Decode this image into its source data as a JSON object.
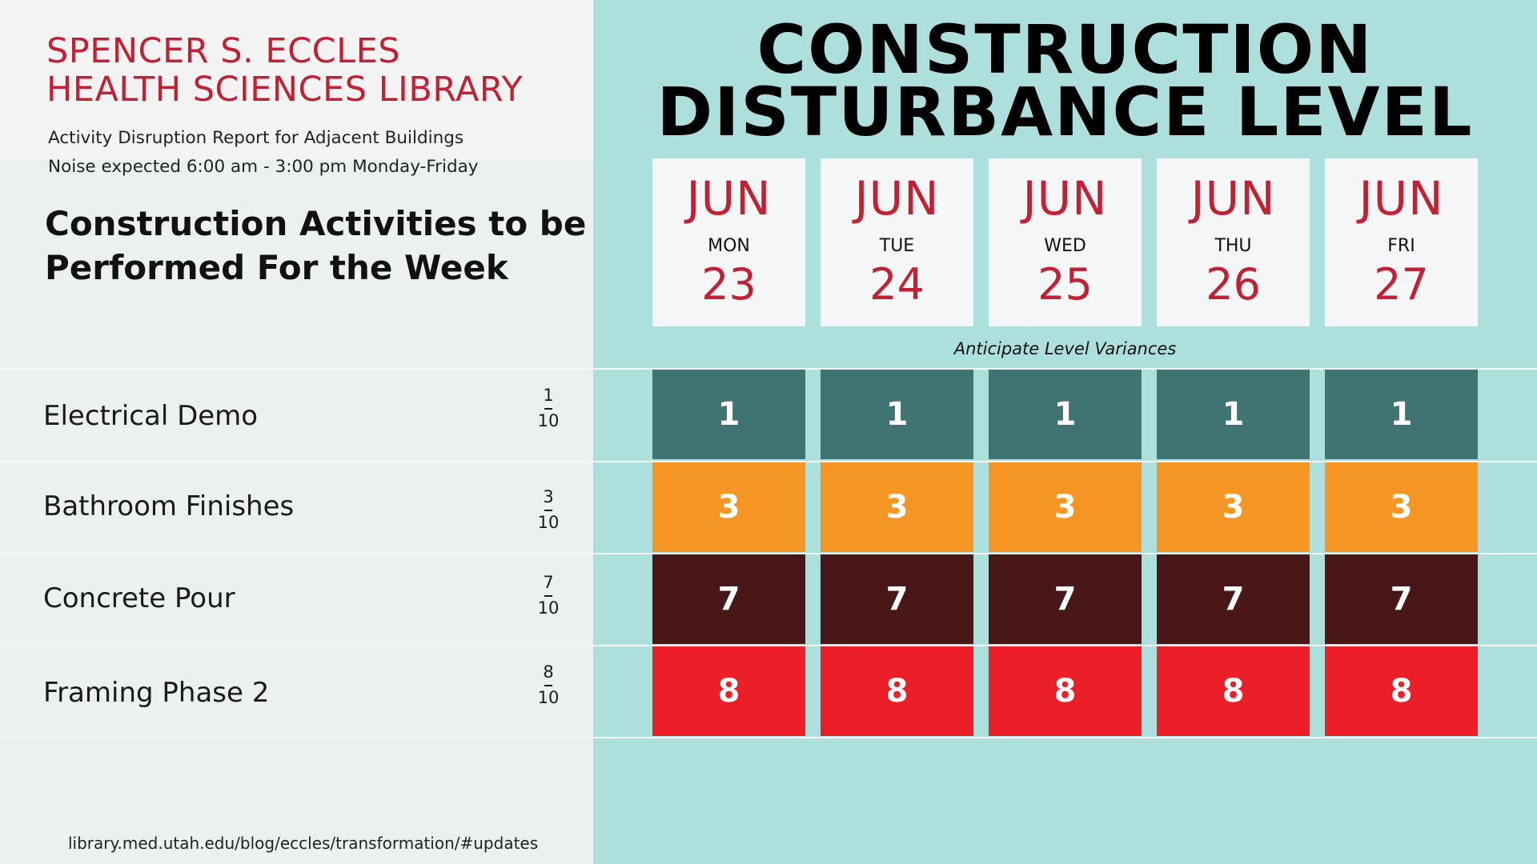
{
  "library": {
    "line1": "SPENCER S. ECCLES",
    "line2": "HEALTH SCIENCES LIBRARY"
  },
  "report": {
    "line1": "Activity Disruption Report for Adjacent Buildings",
    "line2": "Noise expected 6:00 am - 3:00 pm Monday-Friday"
  },
  "heading": {
    "line1": "Construction Activities to be",
    "line2": "Performed For the Week"
  },
  "title": {
    "line1": "CONSTRUCTION",
    "line2": "DISTURBANCE LEVEL"
  },
  "dates": [
    {
      "month": "JUN",
      "day": "MON",
      "date": "23"
    },
    {
      "month": "JUN",
      "day": "TUE",
      "date": "24"
    },
    {
      "month": "JUN",
      "day": "WED",
      "date": "25"
    },
    {
      "month": "JUN",
      "day": "THU",
      "date": "26"
    },
    {
      "month": "JUN",
      "day": "FRI",
      "date": "27"
    }
  ],
  "variance_note": "Anticipate Level Variances",
  "activities": [
    {
      "name": "Electrical Demo",
      "level_num": "1",
      "level_den": "10",
      "daily": [
        "1",
        "1",
        "1",
        "1",
        "1"
      ],
      "color": "#3f7472"
    },
    {
      "name": "Bathroom Finishes",
      "level_num": "3",
      "level_den": "10",
      "daily": [
        "3",
        "3",
        "3",
        "3",
        "3"
      ],
      "color": "#f59523"
    },
    {
      "name": "Concrete Pour",
      "level_num": "7",
      "level_den": "10",
      "daily": [
        "7",
        "7",
        "7",
        "7",
        "7"
      ],
      "color": "#4a1719"
    },
    {
      "name": "Framing Phase 2",
      "level_num": "8",
      "level_den": "10",
      "daily": [
        "8",
        "8",
        "8",
        "8",
        "8"
      ],
      "color": "#ec1f28"
    }
  ],
  "footer_url": "library.med.utah.edu/blog/eccles/transformation/#updates",
  "colors": {
    "brand_red": "#c22033",
    "panel_teal": "#ade0dc"
  }
}
